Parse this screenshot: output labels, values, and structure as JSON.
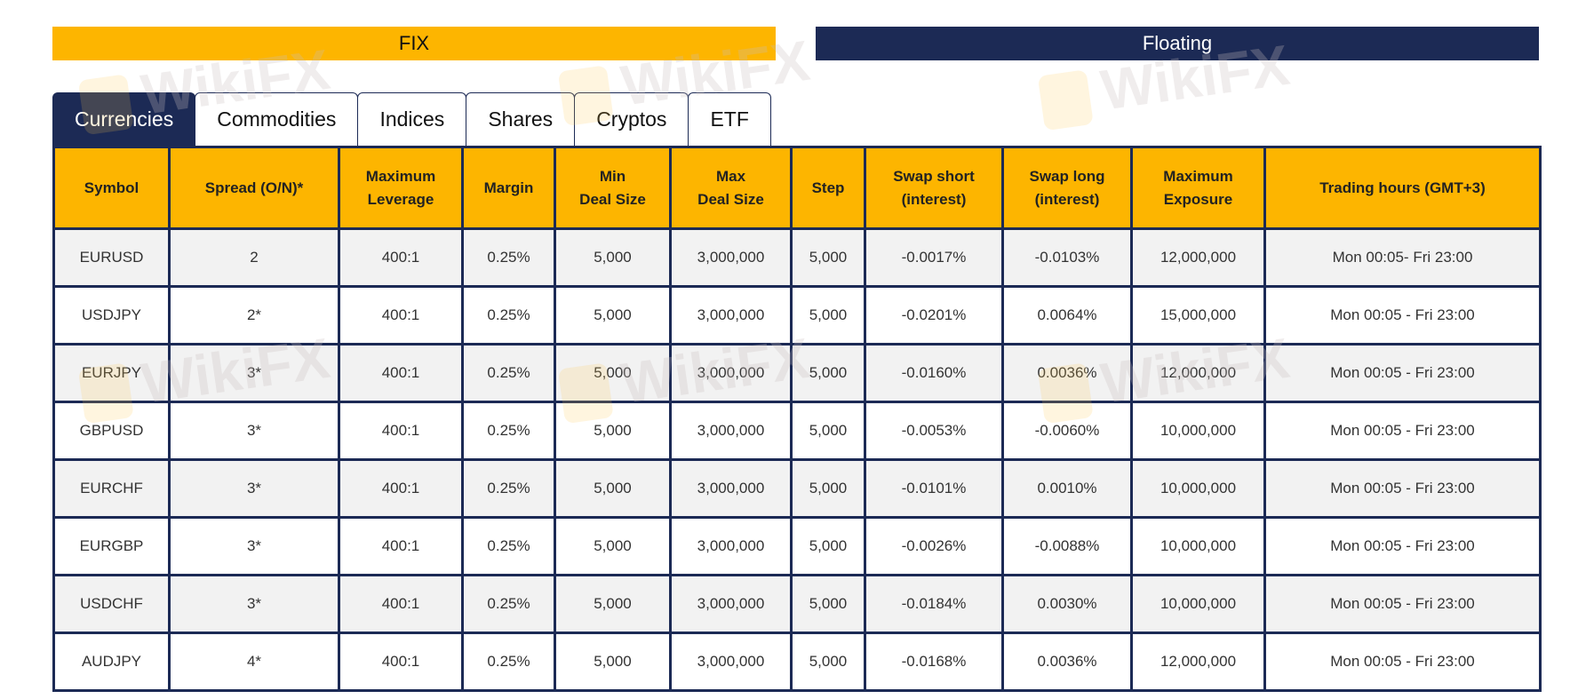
{
  "pricing_toggle": {
    "fix_label": "FIX",
    "floating_label": "Floating"
  },
  "tabs": [
    {
      "label": "Currencies",
      "active": true
    },
    {
      "label": "Commodities",
      "active": false
    },
    {
      "label": "Indices",
      "active": false
    },
    {
      "label": "Shares",
      "active": false
    },
    {
      "label": "Cryptos",
      "active": false
    },
    {
      "label": "ETF",
      "active": false
    }
  ],
  "table": {
    "headers": [
      "Symbol",
      "Spread (O/N)*",
      "Maximum Leverage",
      "Margin",
      "Min Deal Size",
      "Max Deal Size",
      "Step",
      "Swap short (interest)",
      "Swap long (interest)",
      "Maximum Exposure",
      "Trading hours (GMT+3)"
    ],
    "rows": [
      [
        "EURUSD",
        "2",
        "400:1",
        "0.25%",
        "5,000",
        "3,000,000",
        "5,000",
        "-0.0017%",
        "-0.0103%",
        "12,000,000",
        "Mon 00:05- Fri 23:00"
      ],
      [
        "USDJPY",
        "2*",
        "400:1",
        "0.25%",
        "5,000",
        "3,000,000",
        "5,000",
        "-0.0201%",
        "0.0064%",
        "15,000,000",
        "Mon 00:05 - Fri 23:00"
      ],
      [
        "EURJPY",
        "3*",
        "400:1",
        "0.25%",
        "5,000",
        "3,000,000",
        "5,000",
        "-0.0160%",
        "0.0036%",
        "12,000,000",
        "Mon 00:05 - Fri 23:00"
      ],
      [
        "GBPUSD",
        "3*",
        "400:1",
        "0.25%",
        "5,000",
        "3,000,000",
        "5,000",
        "-0.0053%",
        "-0.0060%",
        "10,000,000",
        "Mon 00:05 - Fri 23:00"
      ],
      [
        "EURCHF",
        "3*",
        "400:1",
        "0.25%",
        "5,000",
        "3,000,000",
        "5,000",
        "-0.0101%",
        "0.0010%",
        "10,000,000",
        "Mon 00:05 - Fri 23:00"
      ],
      [
        "EURGBP",
        "3*",
        "400:1",
        "0.25%",
        "5,000",
        "3,000,000",
        "5,000",
        "-0.0026%",
        "-0.0088%",
        "10,000,000",
        "Mon 00:05 - Fri 23:00"
      ],
      [
        "USDCHF",
        "3*",
        "400:1",
        "0.25%",
        "5,000",
        "3,000,000",
        "5,000",
        "-0.0184%",
        "0.0030%",
        "10,000,000",
        "Mon 00:05 - Fri 23:00"
      ],
      [
        "AUDJPY",
        "4*",
        "400:1",
        "0.25%",
        "5,000",
        "3,000,000",
        "5,000",
        "-0.0168%",
        "0.0036%",
        "12,000,000",
        "Mon 00:05 - Fri 23:00"
      ]
    ]
  },
  "colors": {
    "accent_yellow": "#FDB500",
    "navy": "#1C2A55",
    "row_alt": "#F2F2F2"
  },
  "watermark": "WikiFX"
}
